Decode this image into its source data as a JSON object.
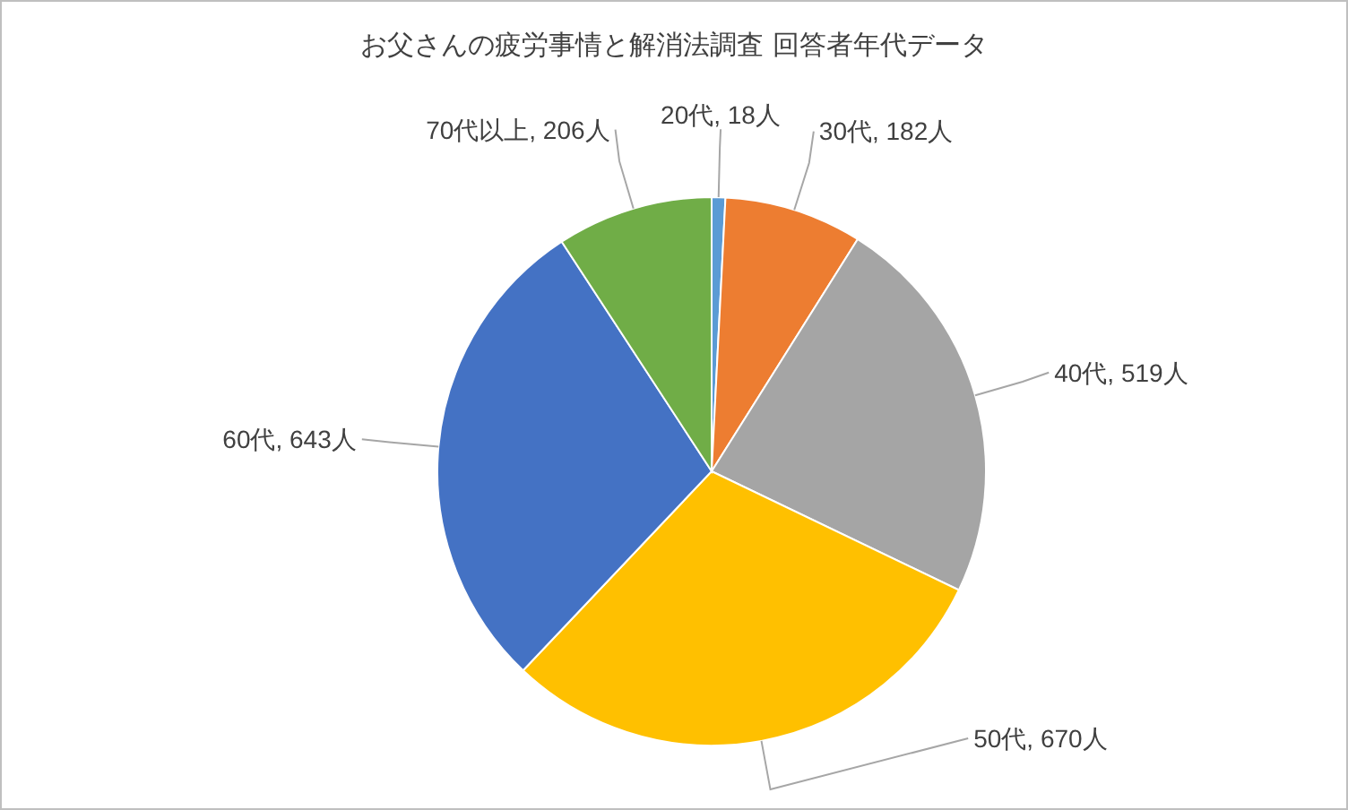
{
  "chart_data": {
    "type": "pie",
    "title": "お父さんの疲労事情と解消法調査 回答者年代データ",
    "categories": [
      "20代",
      "30代",
      "40代",
      "50代",
      "60代",
      "70代以上"
    ],
    "values": [
      18,
      182,
      519,
      670,
      643,
      206
    ],
    "value_labels": [
      "18人",
      "182人",
      "519人",
      "670人",
      "643人",
      "206人"
    ],
    "colors": [
      "#5b9bd5",
      "#ed7d31",
      "#a5a5a5",
      "#ffc000",
      "#4472c4",
      "#70ad47"
    ]
  }
}
